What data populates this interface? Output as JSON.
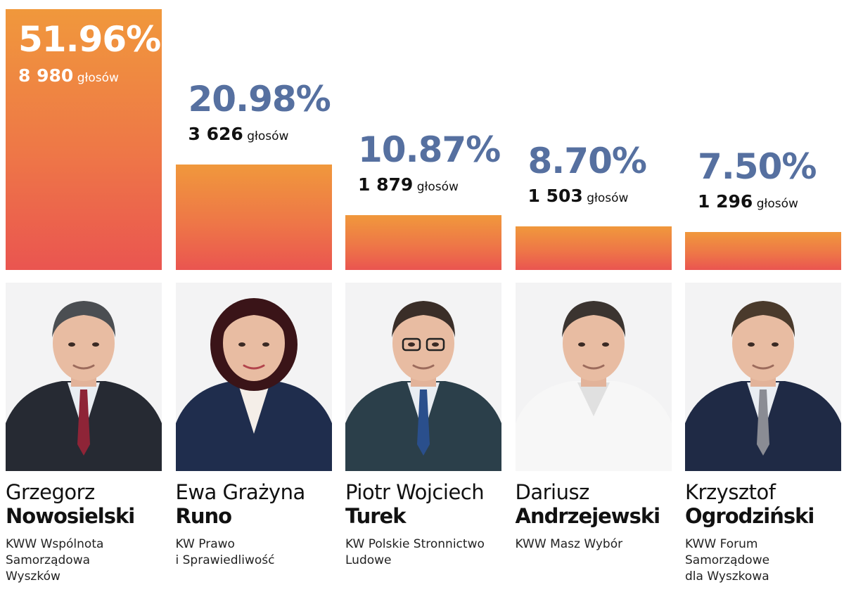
{
  "chart_data": {
    "type": "bar",
    "categories": [
      "Grzegorz Nowosielski",
      "Ewa Grażyna Runo",
      "Piotr Wojciech Turek",
      "Dariusz Andrzejewski",
      "Krzysztof Ogrodziński"
    ],
    "values": [
      51.96,
      20.98,
      10.87,
      8.7,
      7.5
    ],
    "ylim": [
      0,
      51.96
    ],
    "grid": false,
    "legend": "none",
    "colors": {
      "bar_top": "#f0983c",
      "bar_bottom": "#ea5550",
      "percent_label": "#5670a0",
      "leader_label": "#ffffff"
    },
    "vote_unit": "głosów",
    "candidates": [
      {
        "percent_label": "51.96%",
        "votes": "8 980",
        "first_name": "Grzegorz",
        "last_name": "Nowosielski",
        "committee": "KWW Wspólnota\nSamorządowa\nWyszków",
        "tie": "#8e2437",
        "suit": "#262a33",
        "hair": "#4b4e52"
      },
      {
        "percent_label": "20.98%",
        "votes": "3 626",
        "first_name": "Ewa Grażyna",
        "last_name": "Runo",
        "committee": "KW Prawo\ni Sprawiedliwość",
        "tie": "",
        "suit": "#1f2d4d",
        "hair": "#3a1418"
      },
      {
        "percent_label": "10.87%",
        "votes": "1 879",
        "first_name": "Piotr Wojciech",
        "last_name": "Turek",
        "committee": "KW Polskie Stronnictwo\nLudowe",
        "tie": "#2a4f8c",
        "suit": "#2b3f4a",
        "hair": "#3a2e28"
      },
      {
        "percent_label": "8.70%",
        "votes": "1 503",
        "first_name": "Dariusz",
        "last_name": "Andrzejewski",
        "committee": "KWW Masz Wybór",
        "tie": "",
        "suit": "#f7f7f7",
        "hair": "#3b3430"
      },
      {
        "percent_label": "7.50%",
        "votes": "1 296",
        "first_name": "Krzysztof",
        "last_name": "Ogrodziński",
        "committee": "KWW Forum\nSamorządowe\ndla Wyszkowa",
        "tie": "#8a8c94",
        "suit": "#1f2a45",
        "hair": "#4a3a2c"
      }
    ]
  }
}
